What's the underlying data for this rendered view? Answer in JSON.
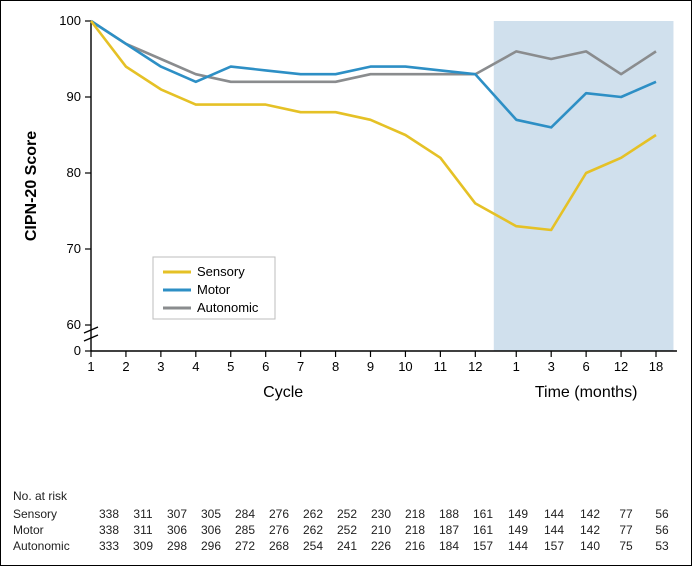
{
  "chart": {
    "type": "line",
    "ylabel": "CIPN-20 Score",
    "xlabel_left": "Cycle",
    "xlabel_right": "Time (months)",
    "ylim": [
      0,
      100
    ],
    "yticks": [
      0,
      60,
      70,
      80,
      90,
      100
    ],
    "x_cycles": [
      1,
      2,
      3,
      4,
      5,
      6,
      7,
      8,
      9,
      10,
      11,
      12
    ],
    "x_time": [
      1,
      3,
      6,
      12,
      18
    ],
    "axis_break": true,
    "legend": {
      "items": [
        {
          "label": "Sensory",
          "color": "#e5c126"
        },
        {
          "label": "Motor",
          "color": "#2d8fc5"
        },
        {
          "label": "Autonomic",
          "color": "#8a8c8e"
        }
      ],
      "box_stroke": "#bdbdbd",
      "box_fill": "#ffffff"
    },
    "shade": {
      "fill": "#c8daea",
      "opacity": 0.85
    },
    "series": {
      "sensory": {
        "color": "#e5c126",
        "width": 2.6,
        "y": [
          100,
          94,
          91,
          89,
          89,
          89,
          88,
          88,
          87,
          85,
          82,
          76,
          73,
          72.5,
          80,
          82,
          85
        ]
      },
      "motor": {
        "color": "#2d8fc5",
        "width": 2.6,
        "y": [
          100,
          97,
          94,
          92,
          94,
          93.5,
          93,
          93,
          94,
          94,
          93.5,
          93,
          87,
          86,
          90.5,
          90,
          92
        ]
      },
      "autonomic": {
        "color": "#8a8c8e",
        "width": 2.6,
        "y": [
          100,
          97,
          95,
          93,
          92,
          92,
          92,
          92,
          93,
          93,
          93,
          93,
          96,
          95,
          96,
          93,
          96
        ]
      }
    },
    "font": {
      "axis_label_pt": 16,
      "axis_label_weight": "600",
      "tick_pt": 13,
      "legend_pt": 13
    },
    "colors": {
      "bg": "#ffffff",
      "axis": "#000000",
      "tick": "#000000",
      "text": "#000000"
    }
  },
  "risk_table": {
    "title": "No. at risk",
    "rows": [
      {
        "label": "Sensory",
        "cells": [
          338,
          311,
          307,
          305,
          284,
          276,
          262,
          252,
          230,
          218,
          188,
          161,
          149,
          144,
          142,
          77,
          56
        ]
      },
      {
        "label": "Motor",
        "cells": [
          338,
          311,
          306,
          306,
          285,
          276,
          262,
          252,
          210,
          218,
          187,
          161,
          149,
          144,
          142,
          77,
          56
        ]
      },
      {
        "label": "Autonomic",
        "cells": [
          333,
          309,
          298,
          296,
          272,
          268,
          254,
          241,
          226,
          216,
          184,
          157,
          144,
          157,
          140,
          75,
          53
        ]
      }
    ]
  }
}
